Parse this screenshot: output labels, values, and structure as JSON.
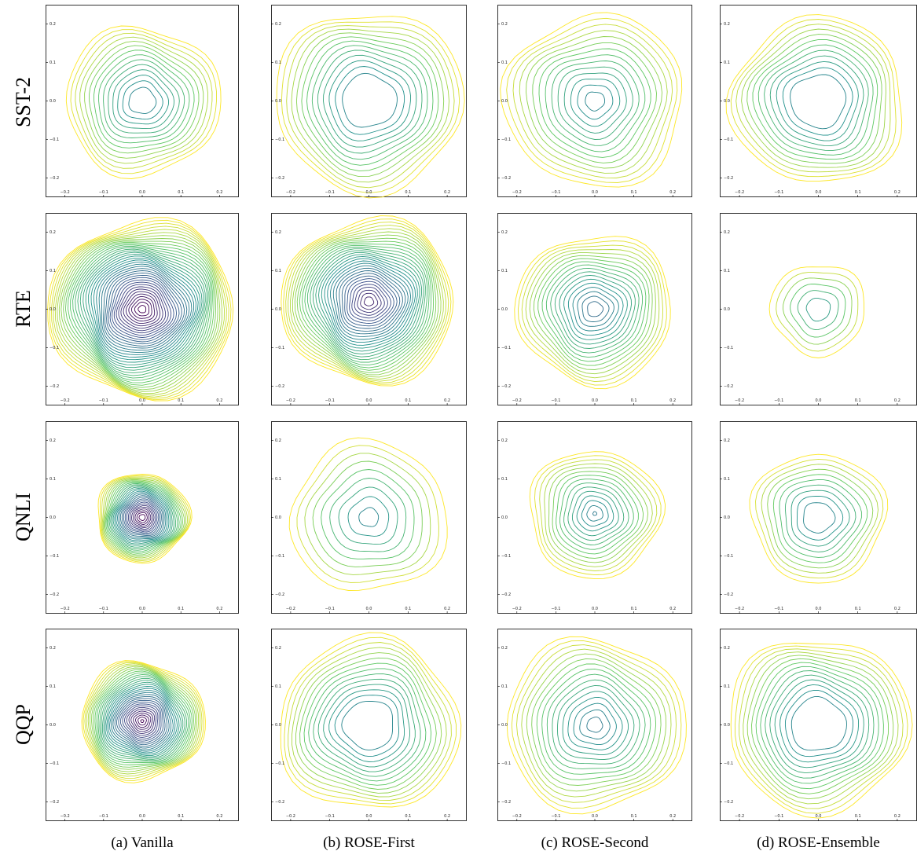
{
  "rows": [
    {
      "label": "SST-2"
    },
    {
      "label": "RTE"
    },
    {
      "label": "QNLI"
    },
    {
      "label": "QQP"
    }
  ],
  "columns": [
    {
      "caption": "(a) Vanilla"
    },
    {
      "caption": "(b) ROSE-First"
    },
    {
      "caption": "(c) ROSE-Second"
    },
    {
      "caption": "(d) ROSE-Ensemble"
    }
  ],
  "colormap": [
    "#440154",
    "#3b528b",
    "#21918c",
    "#5ec962",
    "#fde725"
  ],
  "chart_data": [
    {
      "type": "contour",
      "row": "SST-2",
      "column": "(a) Vanilla",
      "xlim": [
        -0.25,
        0.25
      ],
      "ylim": [
        -0.25,
        0.25
      ],
      "xticks": [
        "−0.2",
        "−0.1",
        "0.0",
        "0.1",
        "0.2"
      ],
      "yticks": [
        "0.2",
        "0.1",
        "0.0",
        "−0.1",
        "−0.2"
      ],
      "center": [
        0.0,
        0.0
      ],
      "levels": 14,
      "innermost_radius": 0.035,
      "outermost_radius": 0.2,
      "innermost_color_index": 0.45
    },
    {
      "type": "contour",
      "row": "SST-2",
      "column": "(b) ROSE-First",
      "xlim": [
        -0.25,
        0.25
      ],
      "ylim": [
        -0.25,
        0.25
      ],
      "xticks": [
        "−0.2",
        "−0.1",
        "0.0",
        "0.1",
        "0.2"
      ],
      "yticks": [
        "0.2",
        "0.1",
        "0.0",
        "−0.1",
        "−0.2"
      ],
      "center": [
        0.0,
        0.0
      ],
      "levels": 13,
      "innermost_radius": 0.07,
      "outermost_radius": 0.24,
      "innermost_color_index": 0.45
    },
    {
      "type": "contour",
      "row": "SST-2",
      "column": "(c) ROSE-Second",
      "xlim": [
        -0.25,
        0.25
      ],
      "ylim": [
        -0.25,
        0.25
      ],
      "xticks": [
        "−0.2",
        "−0.1",
        "0.0",
        "0.1",
        "0.2"
      ],
      "yticks": [
        "0.2",
        "0.1",
        "0.0",
        "−0.1",
        "−0.2"
      ],
      "center": [
        0.0,
        0.0
      ],
      "levels": 14,
      "innermost_radius": 0.025,
      "outermost_radius": 0.23,
      "innermost_color_index": 0.45
    },
    {
      "type": "contour",
      "row": "SST-2",
      "column": "(d) ROSE-Ensemble",
      "xlim": [
        -0.25,
        0.25
      ],
      "ylim": [
        -0.25,
        0.25
      ],
      "xticks": [
        "−0.2",
        "−0.1",
        "0.0",
        "0.1",
        "0.2"
      ],
      "yticks": [
        "0.2",
        "0.1",
        "0.0",
        "−0.1",
        "−0.2"
      ],
      "center": [
        0.0,
        0.0
      ],
      "levels": 12,
      "innermost_radius": 0.07,
      "outermost_radius": 0.22,
      "innermost_color_index": 0.45
    },
    {
      "type": "contour",
      "row": "RTE",
      "column": "(a) Vanilla",
      "xlim": [
        -0.25,
        0.25
      ],
      "ylim": [
        -0.25,
        0.25
      ],
      "xticks": [
        "−0.2",
        "−0.1",
        "0.0",
        "0.1",
        "0.2"
      ],
      "yticks": [
        "0.2",
        "0.1",
        "0.0",
        "−0.1",
        "−0.2"
      ],
      "center": [
        0.0,
        0.0
      ],
      "levels": 40,
      "innermost_radius": 0.01,
      "outermost_radius": 0.24,
      "innermost_color_index": 0.0
    },
    {
      "type": "contour",
      "row": "RTE",
      "column": "(b) ROSE-First",
      "xlim": [
        -0.25,
        0.25
      ],
      "ylim": [
        -0.25,
        0.25
      ],
      "xticks": [
        "−0.2",
        "−0.1",
        "0.0",
        "0.1",
        "0.2"
      ],
      "yticks": [
        "0.2",
        "0.1",
        "0.0",
        "−0.1",
        "−0.2"
      ],
      "center": [
        0.0,
        0.02
      ],
      "levels": 32,
      "innermost_radius": 0.012,
      "outermost_radius": 0.22,
      "innermost_color_index": 0.1
    },
    {
      "type": "contour",
      "row": "RTE",
      "column": "(c) ROSE-Second",
      "xlim": [
        -0.25,
        0.25
      ],
      "ylim": [
        -0.25,
        0.25
      ],
      "xticks": [
        "−0.2",
        "−0.1",
        "0.0",
        "0.1",
        "0.2"
      ],
      "yticks": [
        "0.2",
        "0.1",
        "0.0",
        "−0.1",
        "−0.2"
      ],
      "center": [
        0.0,
        0.0
      ],
      "levels": 18,
      "innermost_radius": 0.02,
      "outermost_radius": 0.2,
      "innermost_color_index": 0.35
    },
    {
      "type": "contour",
      "row": "RTE",
      "column": "(d) ROSE-Ensemble",
      "xlim": [
        -0.25,
        0.25
      ],
      "ylim": [
        -0.25,
        0.25
      ],
      "xticks": [
        "−0.2",
        "−0.1",
        "0.0",
        "0.1",
        "0.2"
      ],
      "yticks": [
        "0.2",
        "0.1",
        "0.0",
        "−0.1",
        "−0.2"
      ],
      "center": [
        0.0,
        0.0
      ],
      "levels": 6,
      "innermost_radius": 0.03,
      "outermost_radius": 0.12,
      "innermost_color_index": 0.55
    },
    {
      "type": "contour",
      "row": "QNLI",
      "column": "(a) Vanilla",
      "xlim": [
        -0.25,
        0.25
      ],
      "ylim": [
        -0.25,
        0.25
      ],
      "xticks": [
        "−0.2",
        "−0.1",
        "0.0",
        "0.1",
        "0.2"
      ],
      "yticks": [
        "0.2",
        "0.1",
        "0.0",
        "−0.1",
        "−0.2"
      ],
      "center": [
        0.0,
        0.0
      ],
      "levels": 30,
      "innermost_radius": 0.008,
      "outermost_radius": 0.12,
      "innermost_color_index": 0.0
    },
    {
      "type": "contour",
      "row": "QNLI",
      "column": "(b) ROSE-First",
      "xlim": [
        -0.25,
        0.25
      ],
      "ylim": [
        -0.25,
        0.25
      ],
      "xticks": [
        "−0.2",
        "−0.1",
        "0.0",
        "0.1",
        "0.2"
      ],
      "yticks": [
        "0.2",
        "0.1",
        "0.0",
        "−0.1",
        "−0.2"
      ],
      "center": [
        0.0,
        0.0
      ],
      "levels": 9,
      "innermost_radius": 0.025,
      "outermost_radius": 0.2,
      "innermost_color_index": 0.45
    },
    {
      "type": "contour",
      "row": "QNLI",
      "column": "(c) ROSE-Second",
      "xlim": [
        -0.25,
        0.25
      ],
      "ylim": [
        -0.25,
        0.25
      ],
      "xticks": [
        "−0.2",
        "−0.1",
        "0.0",
        "0.1",
        "0.2"
      ],
      "yticks": [
        "0.2",
        "0.1",
        "0.0",
        "−0.1",
        "−0.2"
      ],
      "center": [
        0.0,
        0.01
      ],
      "levels": 15,
      "innermost_radius": 0.005,
      "outermost_radius": 0.17,
      "innermost_color_index": 0.4
    },
    {
      "type": "contour",
      "row": "QNLI",
      "column": "(d) ROSE-Ensemble",
      "xlim": [
        -0.25,
        0.25
      ],
      "ylim": [
        -0.25,
        0.25
      ],
      "xticks": [
        "−0.2",
        "−0.1",
        "0.0",
        "0.1",
        "0.2"
      ],
      "yticks": [
        "0.2",
        "0.1",
        "0.0",
        "−0.1",
        "−0.2"
      ],
      "center": [
        0.0,
        0.0
      ],
      "levels": 10,
      "innermost_radius": 0.04,
      "outermost_radius": 0.17,
      "innermost_color_index": 0.45
    },
    {
      "type": "contour",
      "row": "QQP",
      "column": "(a) Vanilla",
      "xlim": [
        -0.25,
        0.25
      ],
      "ylim": [
        -0.25,
        0.25
      ],
      "xticks": [
        "−0.2",
        "−0.1",
        "0.0",
        "0.1",
        "0.2"
      ],
      "yticks": [
        "0.2",
        "0.1",
        "0.0",
        "−0.1",
        "−0.2"
      ],
      "center": [
        0.0,
        0.01
      ],
      "levels": 34,
      "innermost_radius": 0.004,
      "outermost_radius": 0.16,
      "innermost_color_index": 0.0
    },
    {
      "type": "contour",
      "row": "QQP",
      "column": "(b) ROSE-First",
      "xlim": [
        -0.25,
        0.25
      ],
      "ylim": [
        -0.25,
        0.25
      ],
      "xticks": [
        "−0.2",
        "−0.1",
        "0.0",
        "0.1",
        "0.2"
      ],
      "yticks": [
        "0.2",
        "0.1",
        "0.0",
        "−0.1",
        "−0.2"
      ],
      "center": [
        0.0,
        0.0
      ],
      "levels": 14,
      "innermost_radius": 0.065,
      "outermost_radius": 0.23,
      "innermost_color_index": 0.45
    },
    {
      "type": "contour",
      "row": "QQP",
      "column": "(c) ROSE-Second",
      "xlim": [
        -0.25,
        0.25
      ],
      "ylim": [
        -0.25,
        0.25
      ],
      "xticks": [
        "−0.2",
        "−0.1",
        "0.0",
        "0.1",
        "0.2"
      ],
      "yticks": [
        "0.2",
        "0.1",
        "0.0",
        "−0.1",
        "−0.2"
      ],
      "center": [
        0.0,
        0.0
      ],
      "levels": 16,
      "innermost_radius": 0.02,
      "outermost_radius": 0.23,
      "innermost_color_index": 0.4
    },
    {
      "type": "contour",
      "row": "QQP",
      "column": "(d) ROSE-Ensemble",
      "xlim": [
        -0.25,
        0.25
      ],
      "ylim": [
        -0.25,
        0.25
      ],
      "xticks": [
        "−0.2",
        "−0.1",
        "0.0",
        "0.1",
        "0.2"
      ],
      "yticks": [
        "0.2",
        "0.1",
        "0.0",
        "−0.1",
        "−0.2"
      ],
      "center": [
        0.0,
        0.0
      ],
      "levels": 14,
      "innermost_radius": 0.07,
      "outermost_radius": 0.23,
      "innermost_color_index": 0.45
    }
  ]
}
